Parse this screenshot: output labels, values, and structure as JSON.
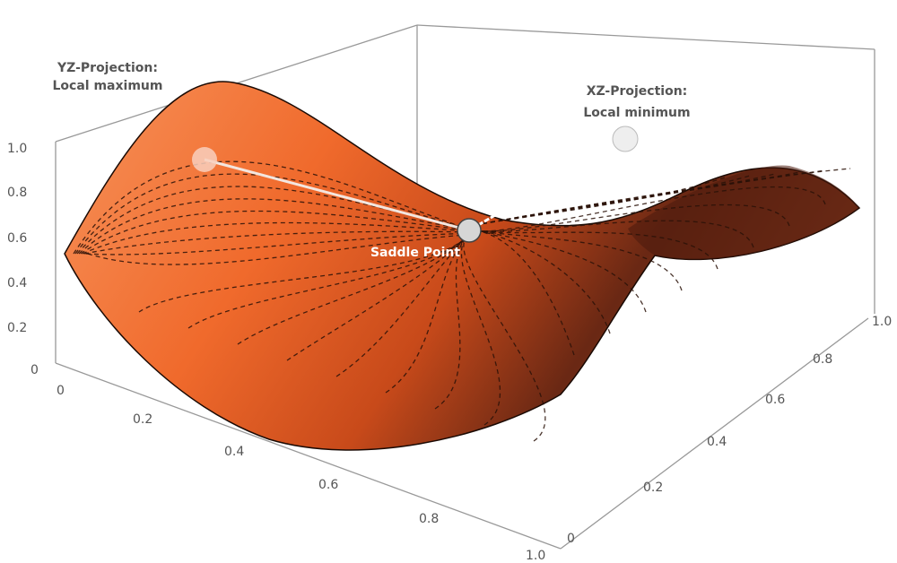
{
  "chart_data": {
    "type": "surface",
    "surface_kind": "saddle",
    "x_ticks": [
      "0",
      "0.2",
      "0.4",
      "0.6",
      "0.8",
      "1.0"
    ],
    "y_ticks": [
      "0",
      "0.2",
      "0.4",
      "0.6",
      "0.8",
      "1.0"
    ],
    "z_ticks": [
      "0",
      "0.2",
      "0.4",
      "0.6",
      "0.8",
      "1.0"
    ],
    "xlim": [
      0,
      1
    ],
    "ylim": [
      0,
      1
    ],
    "zlim": [
      0,
      1
    ],
    "contours": "dashed",
    "colors": {
      "surface_light": "#f58a4e",
      "surface_mid": "#e85a1e",
      "surface_dark": "#5a2212",
      "box": "#999999"
    },
    "annotations": {
      "yz": [
        "YZ-Projection:",
        "Local maximum"
      ],
      "xz": [
        "XZ-Projection:",
        "Local minimum"
      ],
      "saddle": "Saddle Point"
    }
  }
}
